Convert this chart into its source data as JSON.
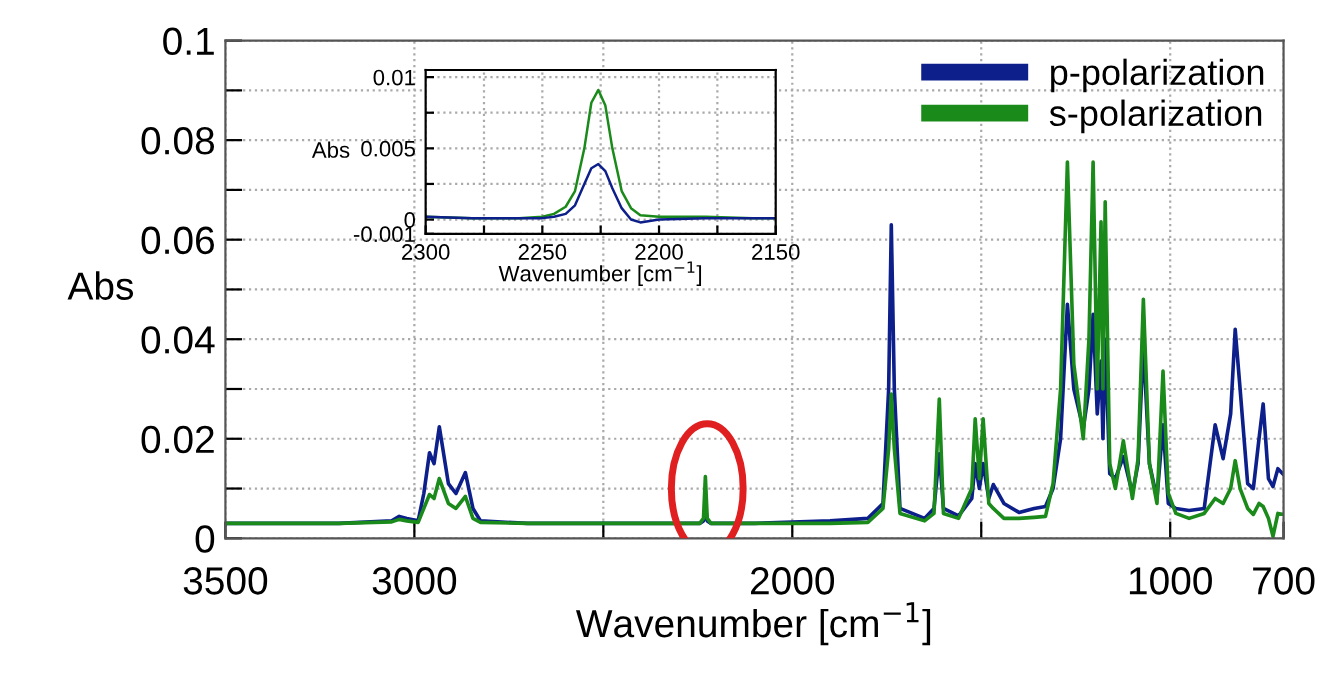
{
  "chart_data": [
    {
      "type": "line",
      "xlabel": "Wavenumber [cm$^{−1}$]",
      "ylabel": "Abs",
      "legend": "top right",
      "grid": true,
      "line_style": "solid",
      "xlim": [
        3500,
        700
      ],
      "ylim": [
        0,
        0.1
      ],
      "xticks": [
        3500,
        3000,
        {
          "value": 2500,
          "label": null
        },
        2000,
        {
          "value": 1500,
          "label": null
        },
        1000,
        700
      ],
      "yticks": [
        0,
        {
          "value": 0.01,
          "label": null
        },
        0.02,
        {
          "value": 0.03,
          "label": null
        },
        0.04,
        {
          "value": 0.05,
          "label": null
        },
        0.06,
        {
          "value": 0.07,
          "label": null
        },
        0.08,
        {
          "value": 0.09,
          "label": null
        },
        0.1
      ],
      "x": [
        3500,
        3200,
        3060,
        3040,
        3020,
        2990,
        2975,
        2960,
        2948,
        2934,
        2910,
        2890,
        2865,
        2845,
        2825,
        2700,
        2400,
        2245,
        2235,
        2230,
        2225,
        2215,
        2100,
        1900,
        1800,
        1760,
        1745,
        1738,
        1730,
        1715,
        1650,
        1625,
        1611,
        1600,
        1560,
        1525,
        1516,
        1505,
        1495,
        1480,
        1468,
        1440,
        1400,
        1360,
        1330,
        1310,
        1290,
        1272,
        1255,
        1230,
        1215,
        1204,
        1193,
        1183,
        1178,
        1172,
        1160,
        1145,
        1124,
        1100,
        1085,
        1071,
        1055,
        1035,
        1019,
        1005,
        985,
        950,
        910,
        881,
        860,
        840,
        828,
        815,
        795,
        780,
        765,
        754,
        740,
        728,
        715,
        700
      ],
      "series": [
        {
          "name": "p-polarization",
          "color": "#0d1f8a",
          "values": [
            0.003,
            0.003,
            0.0035,
            0.0044,
            0.004,
            0.0035,
            0.009,
            0.0172,
            0.015,
            0.0224,
            0.011,
            0.009,
            0.0132,
            0.006,
            0.0035,
            0.003,
            0.003,
            0.003,
            0.0035,
            0.0064,
            0.0035,
            0.003,
            0.003,
            0.0035,
            0.004,
            0.007,
            0.03,
            0.063,
            0.03,
            0.006,
            0.004,
            0.006,
            0.017,
            0.006,
            0.0045,
            0.008,
            0.015,
            0.01,
            0.015,
            0.008,
            0.0108,
            0.007,
            0.0052,
            0.006,
            0.0064,
            0.01,
            0.02,
            0.047,
            0.03,
            0.022,
            0.03,
            0.045,
            0.025,
            0.0356,
            0.02,
            0.04,
            0.013,
            0.012,
            0.0164,
            0.009,
            0.015,
            0.039,
            0.015,
            0.008,
            0.0228,
            0.007,
            0.006,
            0.0056,
            0.006,
            0.0228,
            0.016,
            0.025,
            0.042,
            0.03,
            0.011,
            0.01,
            0.02,
            0.027,
            0.012,
            0.0104,
            0.014,
            0.0128
          ]
        },
        {
          "name": "s-polarization",
          "color": "#1a8a1a",
          "values": [
            0.003,
            0.003,
            0.0033,
            0.0038,
            0.0035,
            0.0032,
            0.006,
            0.0088,
            0.008,
            0.012,
            0.007,
            0.006,
            0.0084,
            0.004,
            0.0032,
            0.003,
            0.003,
            0.003,
            0.004,
            0.0124,
            0.004,
            0.003,
            0.003,
            0.003,
            0.0032,
            0.006,
            0.018,
            0.029,
            0.018,
            0.005,
            0.0035,
            0.005,
            0.028,
            0.005,
            0.004,
            0.01,
            0.024,
            0.012,
            0.024,
            0.007,
            0.006,
            0.004,
            0.004,
            0.0042,
            0.0044,
            0.011,
            0.03,
            0.0756,
            0.035,
            0.02,
            0.04,
            0.0756,
            0.03,
            0.0636,
            0.03,
            0.0676,
            0.015,
            0.01,
            0.0196,
            0.008,
            0.016,
            0.048,
            0.015,
            0.007,
            0.0336,
            0.009,
            0.005,
            0.004,
            0.005,
            0.008,
            0.007,
            0.01,
            0.0156,
            0.01,
            0.006,
            0.0048,
            0.007,
            0.0064,
            0.004,
            0.0004,
            0.005,
            0.0048
          ]
        }
      ]
    },
    {
      "type": "line",
      "xlabel": "Wavenumber [cm$^{−1}$]",
      "ylabel": "Abs",
      "grid": true,
      "line_style": "solid",
      "xlim": [
        2300,
        2150
      ],
      "ylim": [
        -0.001,
        0.0105
      ],
      "xticks": [
        2300,
        {
          "value": 2275,
          "label": null
        },
        2250,
        {
          "value": 2225,
          "label": null
        },
        2200,
        {
          "value": 2175,
          "label": null
        },
        2150
      ],
      "yticks": [
        {
          "value": -0.001,
          "label": "-0.001"
        },
        0,
        {
          "value": 0.0025,
          "label": null
        },
        0.005,
        {
          "value": 0.0075,
          "label": null
        },
        0.01
      ],
      "x": [
        2300,
        2280,
        2260,
        2250,
        2245,
        2240,
        2236,
        2232,
        2229,
        2226,
        2223,
        2220,
        2216,
        2212,
        2208,
        2200,
        2180,
        2160,
        2150
      ],
      "series": [
        {
          "color": "#1a8a1a",
          "values": [
            0.0002,
            0.0001,
            0.0001,
            0.0002,
            0.0004,
            0.0009,
            0.002,
            0.005,
            0.0082,
            0.0091,
            0.008,
            0.005,
            0.002,
            0.0008,
            0.0003,
            0.0002,
            0.0002,
            0.0001,
            0.0001
          ]
        },
        {
          "color": "#0d1f8a",
          "values": [
            0.0002,
            0.0001,
            0.0001,
            0.0001,
            0.0002,
            0.0004,
            0.001,
            0.0025,
            0.0036,
            0.0039,
            0.0034,
            0.0022,
            0.0008,
            0.0,
            -0.0002,
            0.0,
            0.0001,
            0.0001,
            0.0001
          ]
        }
      ]
    }
  ]
}
